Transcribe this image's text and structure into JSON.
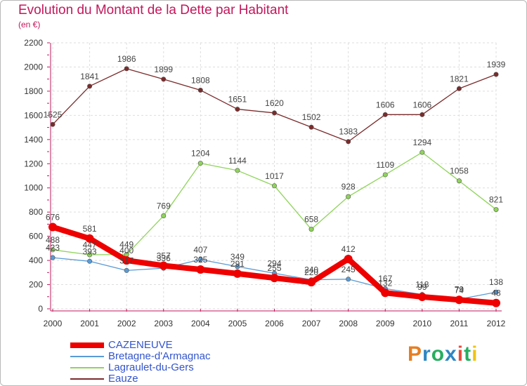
{
  "page": {
    "title": "Evolution du Montant de la Dette par Habitant",
    "subtitle": "(en €)",
    "logo": "Proxiti",
    "logo_colors": [
      "#e67e22",
      "#2e86c1",
      "#27ae60",
      "#2e86c1",
      "#e74c3c",
      "#27ae60",
      "#f1c40f"
    ]
  },
  "chart_data": {
    "type": "line",
    "title": "Evolution du Montant de la Dette par Habitant",
    "subtitle": "(en €)",
    "xlabel": "",
    "ylabel": "",
    "x": [
      "2000",
      "2001",
      "2002",
      "2003",
      "2004",
      "2005",
      "2006",
      "2007",
      "2008",
      "2009",
      "2010",
      "2011",
      "2012"
    ],
    "ylim": [
      0,
      2200
    ],
    "yticks": [
      "0",
      "200",
      "400",
      "600",
      "800",
      "1000",
      "1200",
      "1400",
      "1600",
      "1800",
      "2000",
      "2200"
    ],
    "grid": true,
    "legend_position": "bottom-left",
    "series": [
      {
        "name": "Eauze",
        "color": "#7b2b2b",
        "values": [
          1525,
          1841,
          1986,
          1899,
          1808,
          1651,
          1620,
          1502,
          1383,
          1606,
          1606,
          1821,
          1939
        ]
      },
      {
        "name": "Lagraulet-du-Gers",
        "color": "#8fd45a",
        "values": [
          488,
          447,
          449,
          769,
          1204,
          1144,
          1017,
          658,
          928,
          1109,
          1294,
          1058,
          821
        ]
      },
      {
        "name": "Bretagne-d'Armagnac",
        "color": "#5a9bd5",
        "values": [
          423,
          393,
          317,
          336,
          407,
          349,
          294,
          240,
          245,
          167,
          118,
          79,
          138
        ]
      },
      {
        "name": "CAZENEUVE",
        "color": "#ee0000",
        "values": [
          676,
          581,
          400,
          357,
          325,
          291,
          255,
          220,
          412,
          132,
          99,
          74,
          48
        ]
      }
    ],
    "legend": [
      "CAZENEUVE",
      "Bretagne-d'Armagnac",
      "Lagraulet-du-Gers",
      "Eauze"
    ]
  }
}
